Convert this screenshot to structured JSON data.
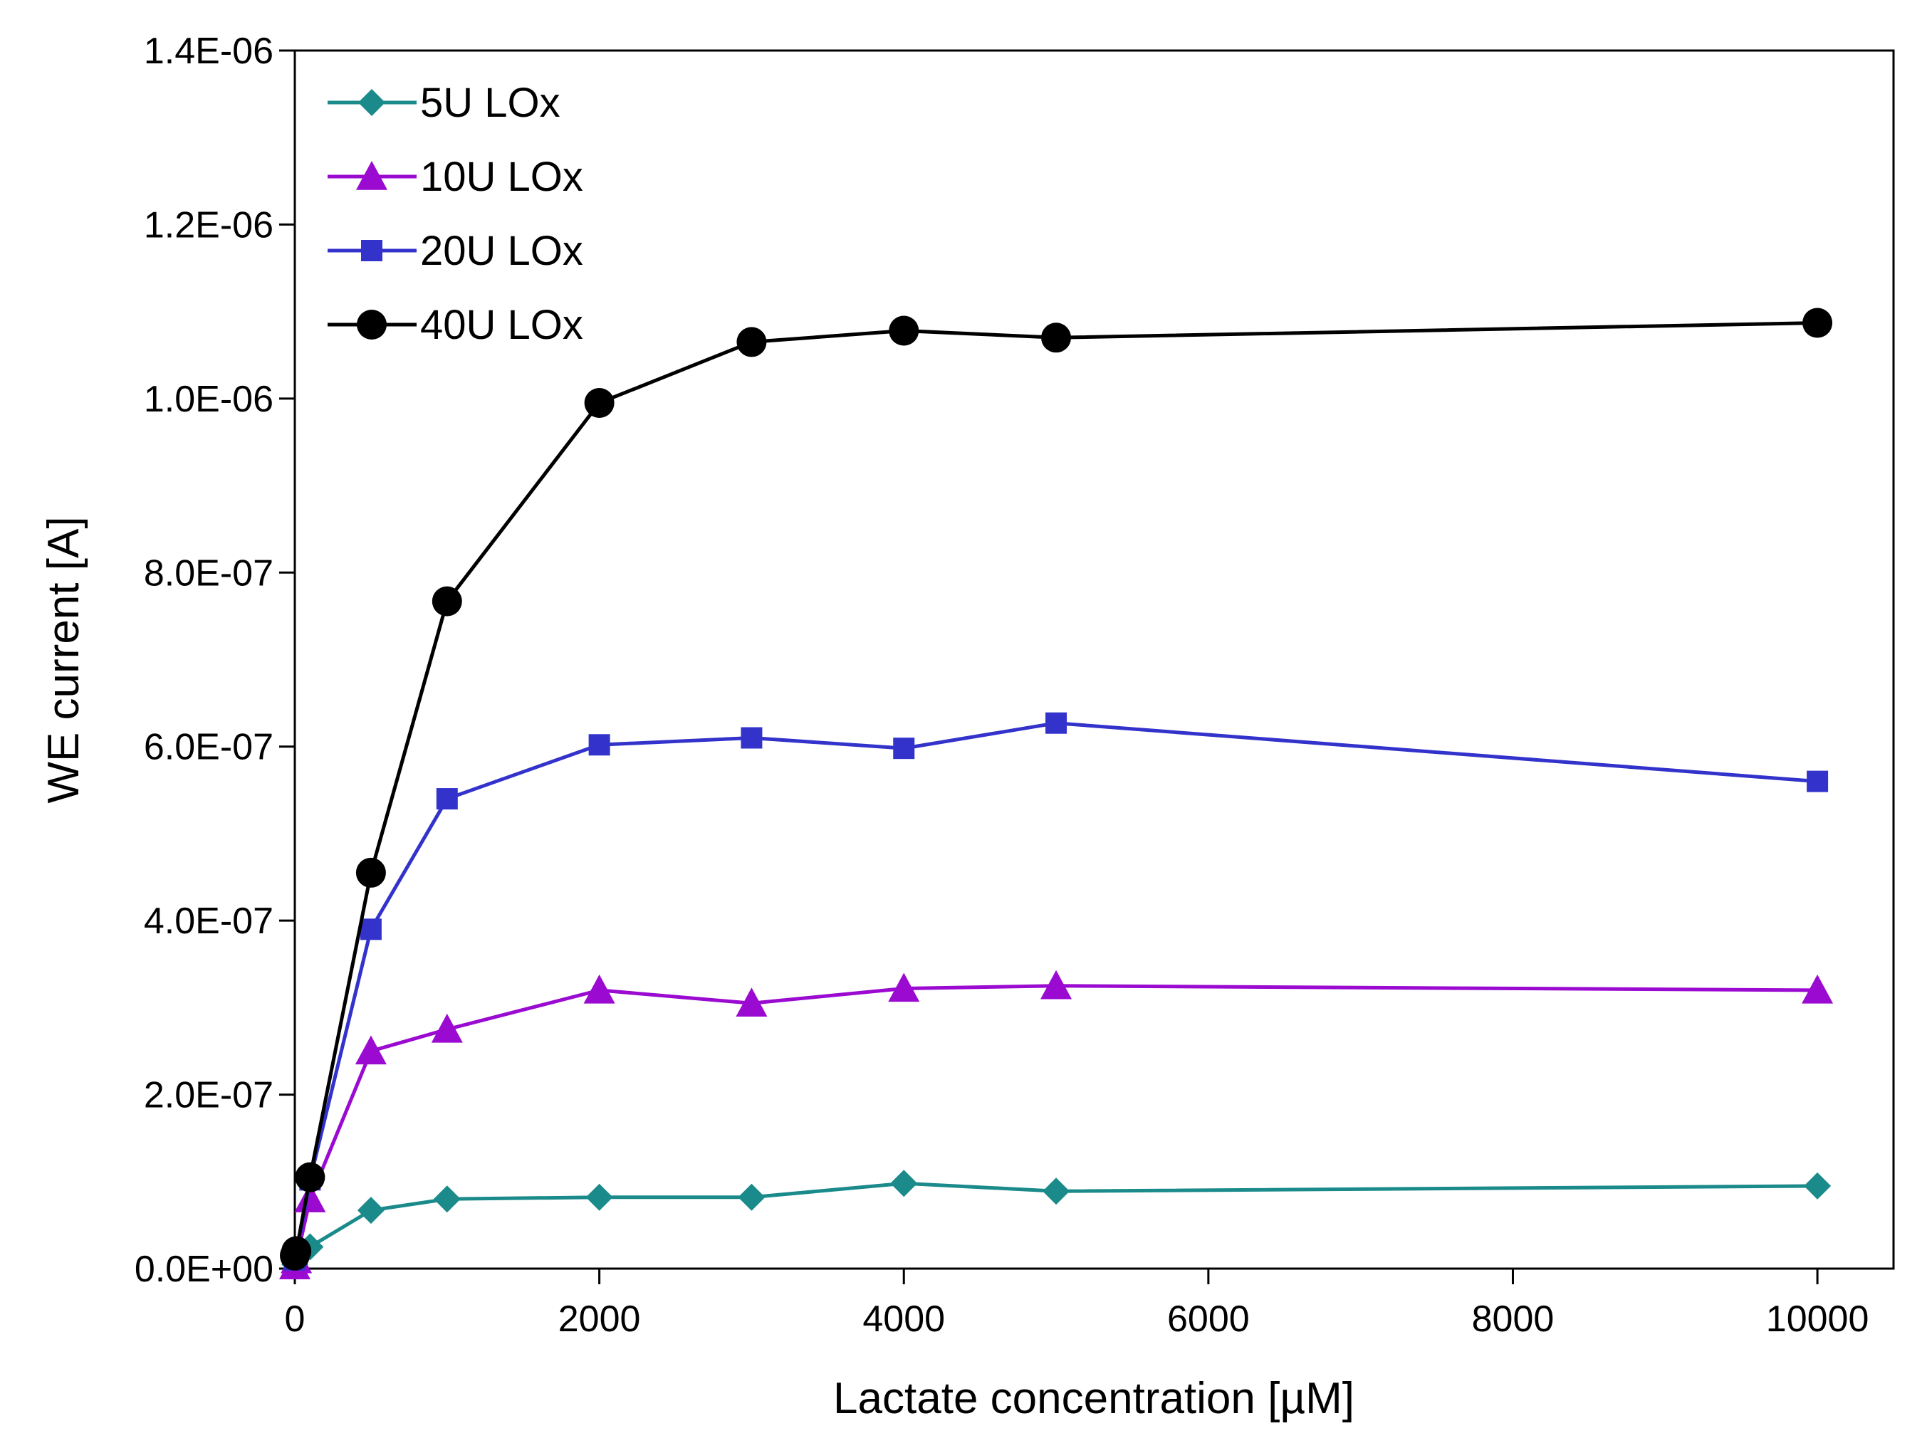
{
  "chart_data": {
    "type": "line",
    "title": "",
    "xlabel": "Lactate concentration [µM]",
    "ylabel": "WE current [A]",
    "xlim": [
      0,
      10500
    ],
    "ylim": [
      0,
      1.4e-06
    ],
    "xticks": [
      0,
      2000,
      4000,
      6000,
      8000,
      10000
    ],
    "xtick_labels": [
      "0",
      "2000",
      "4000",
      "6000",
      "8000",
      "10000"
    ],
    "yticks": [
      0,
      2e-07,
      4e-07,
      6e-07,
      8e-07,
      1e-06,
      1.2e-06,
      1.4e-06
    ],
    "ytick_labels": [
      "0.0E+00",
      "2.0E-07",
      "4.0E-07",
      "6.0E-07",
      "8.0E-07",
      "1.0E-06",
      "1.2E-06",
      "1.4E-06"
    ],
    "grid": false,
    "legend_position": "top-left",
    "x": [
      0,
      10,
      100,
      500,
      1000,
      2000,
      3000,
      4000,
      5000,
      10000
    ],
    "series": [
      {
        "name": "5U LOx",
        "color": "#1a8a8a",
        "marker": "diamond",
        "values": [
          5e-09,
          1.2e-08,
          2.5e-08,
          6.7e-08,
          8e-08,
          8.2e-08,
          8.2e-08,
          9.8e-08,
          8.9e-08,
          9.5e-08
        ]
      },
      {
        "name": "10U LOx",
        "color": "#9a0ad0",
        "marker": "triangle",
        "values": [
          3e-09,
          1e-08,
          8e-08,
          2.5e-07,
          2.75e-07,
          3.2e-07,
          3.05e-07,
          3.22e-07,
          3.25e-07,
          3.2e-07
        ]
      },
      {
        "name": "20U LOx",
        "color": "#3333cc",
        "marker": "square",
        "values": [
          1e-08,
          1.5e-08,
          1.02e-07,
          3.9e-07,
          5.4e-07,
          6.02e-07,
          6.1e-07,
          5.98e-07,
          6.27e-07,
          5.6e-07
        ]
      },
      {
        "name": "40U LOx",
        "color": "#000000",
        "marker": "circle",
        "values": [
          1.5e-08,
          2e-08,
          1.05e-07,
          4.55e-07,
          7.67e-07,
          9.95e-07,
          1.065e-06,
          1.078e-06,
          1.07e-06,
          1.087e-06
        ]
      }
    ]
  }
}
